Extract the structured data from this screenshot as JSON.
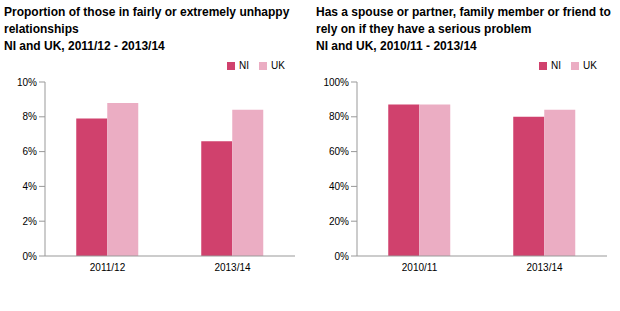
{
  "chart_data": [
    {
      "type": "bar",
      "title": "Proportion of those in fairly or extremely unhappy relationships",
      "subtitle": "NI and UK, 2011/12 - 2013/14",
      "categories": [
        "2011/12",
        "2013/14"
      ],
      "series": [
        {
          "name": "NI",
          "color": "#d0416d",
          "values": [
            7.9,
            6.6
          ]
        },
        {
          "name": "UK",
          "color": "#ebadc3",
          "values": [
            8.8,
            8.4
          ]
        }
      ],
      "ylim": [
        0,
        10
      ],
      "yticks": [
        {
          "value": 0,
          "label": "0%"
        },
        {
          "value": 2,
          "label": "2%"
        },
        {
          "value": 4,
          "label": "4%"
        },
        {
          "value": 6,
          "label": "6%"
        },
        {
          "value": 8,
          "label": "8%"
        },
        {
          "value": 10,
          "label": "10%"
        }
      ],
      "grid": false,
      "legend": "upper right"
    },
    {
      "type": "bar",
      "title": "Has a spouse or partner, family member or friend to rely on if they have a serious problem",
      "subtitle": "NI and UK, 2010/11 - 2013/14",
      "categories": [
        "2010/11",
        "2013/14"
      ],
      "series": [
        {
          "name": "NI",
          "color": "#d0416d",
          "values": [
            87,
            80
          ]
        },
        {
          "name": "UK",
          "color": "#ebadc3",
          "values": [
            87,
            84
          ]
        }
      ],
      "ylim": [
        0,
        100
      ],
      "yticks": [
        {
          "value": 0,
          "label": "0%"
        },
        {
          "value": 20,
          "label": "20%"
        },
        {
          "value": 40,
          "label": "40%"
        },
        {
          "value": 60,
          "label": "60%"
        },
        {
          "value": 80,
          "label": "80%"
        },
        {
          "value": 100,
          "label": "100%"
        }
      ],
      "grid": false,
      "legend": "upper right"
    }
  ]
}
